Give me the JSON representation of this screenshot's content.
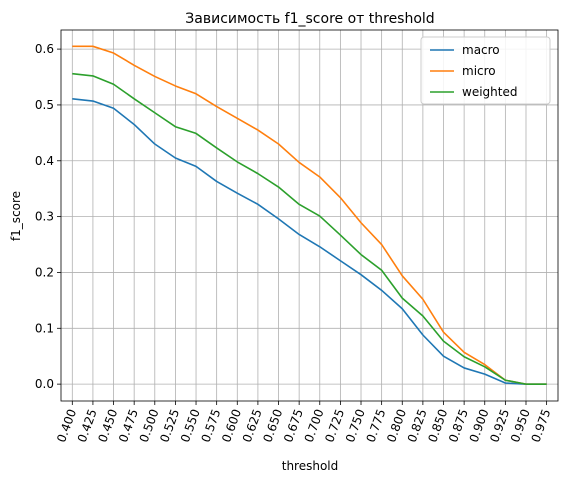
{
  "chart_data": {
    "type": "line",
    "title": "Зависимость f1_score от threshold",
    "xlabel": "threshold",
    "ylabel": "f1_score",
    "x": [
      0.4,
      0.425,
      0.45,
      0.475,
      0.5,
      0.525,
      0.55,
      0.575,
      0.6,
      0.625,
      0.65,
      0.675,
      0.7,
      0.725,
      0.75,
      0.775,
      0.8,
      0.825,
      0.85,
      0.875,
      0.9,
      0.925,
      0.95,
      0.975
    ],
    "x_tick_labels": [
      "0.400",
      "0.425",
      "0.450",
      "0.475",
      "0.500",
      "0.525",
      "0.550",
      "0.575",
      "0.600",
      "0.625",
      "0.650",
      "0.675",
      "0.700",
      "0.725",
      "0.750",
      "0.775",
      "0.800",
      "0.825",
      "0.850",
      "0.875",
      "0.900",
      "0.925",
      "0.950",
      "0.975"
    ],
    "y_ticks": [
      0.0,
      0.1,
      0.2,
      0.3,
      0.4,
      0.5,
      0.6
    ],
    "y_tick_labels": [
      "0.0",
      "0.1",
      "0.2",
      "0.3",
      "0.4",
      "0.5",
      "0.6"
    ],
    "xlim": [
      0.3863,
      0.9888
    ],
    "ylim": [
      -0.0302,
      0.6342
    ],
    "grid": true,
    "legend_position": "top-right",
    "series": [
      {
        "name": "macro",
        "color": "#1f77b4",
        "values": [
          0.511,
          0.507,
          0.494,
          0.465,
          0.43,
          0.405,
          0.39,
          0.363,
          0.342,
          0.322,
          0.296,
          0.268,
          0.246,
          0.221,
          0.196,
          0.168,
          0.135,
          0.088,
          0.05,
          0.029,
          0.018,
          0.002,
          0.0,
          0.0
        ]
      },
      {
        "name": "micro",
        "color": "#ff7f0e",
        "values": [
          0.605,
          0.605,
          0.593,
          0.571,
          0.551,
          0.534,
          0.52,
          0.497,
          0.476,
          0.455,
          0.43,
          0.397,
          0.371,
          0.334,
          0.289,
          0.25,
          0.194,
          0.152,
          0.093,
          0.057,
          0.035,
          0.007,
          0.0,
          0.0
        ]
      },
      {
        "name": "weighted",
        "color": "#2ca02c",
        "values": [
          0.556,
          0.552,
          0.537,
          0.511,
          0.486,
          0.461,
          0.449,
          0.423,
          0.398,
          0.377,
          0.353,
          0.322,
          0.301,
          0.267,
          0.232,
          0.204,
          0.154,
          0.122,
          0.077,
          0.049,
          0.031,
          0.007,
          0.0,
          0.0
        ]
      }
    ]
  }
}
